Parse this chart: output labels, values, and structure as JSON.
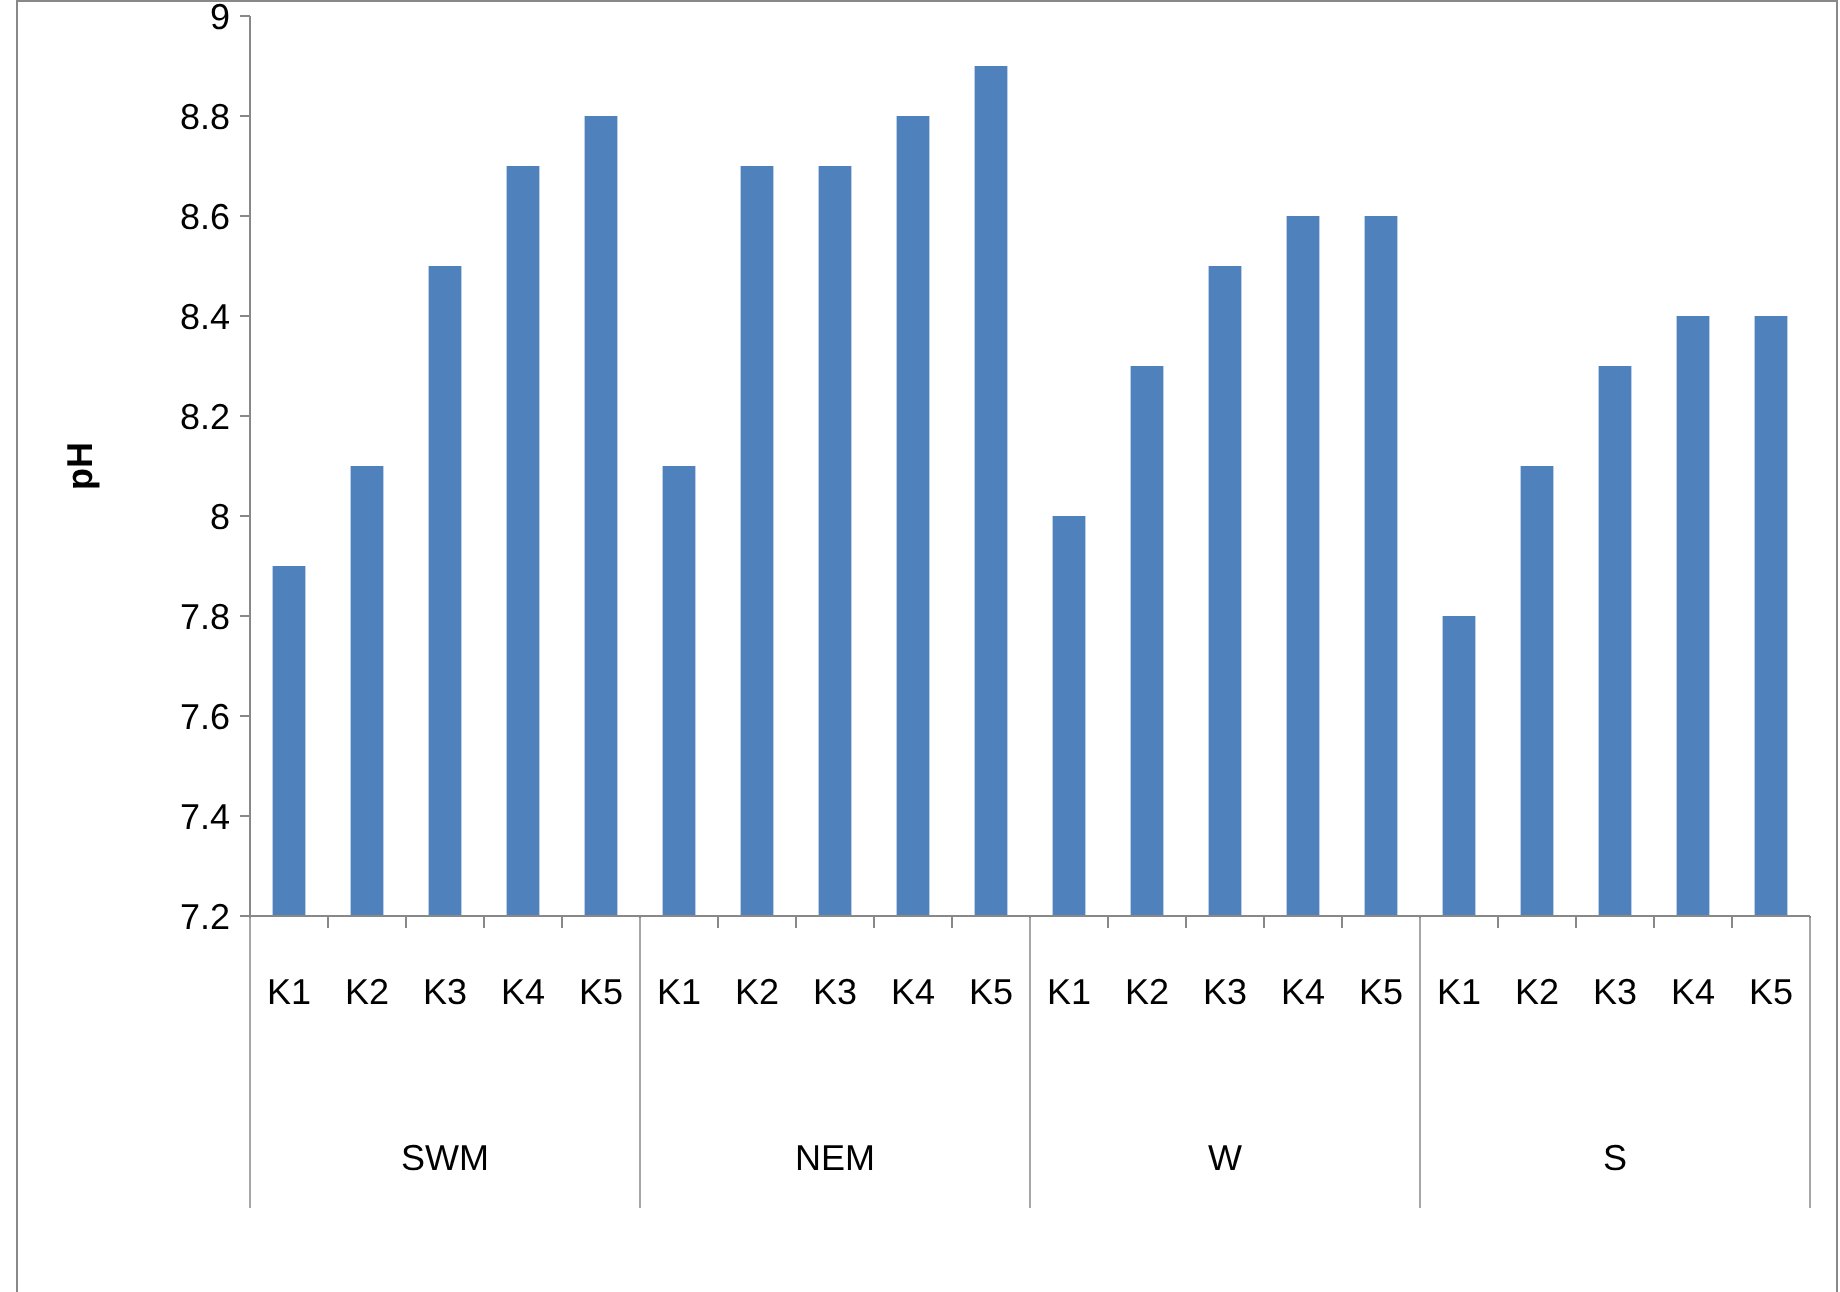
{
  "chart_data": {
    "type": "bar",
    "ylabel": "pH",
    "categories": [
      "K1",
      "K2",
      "K3",
      "K4",
      "K5",
      "K1",
      "K2",
      "K3",
      "K4",
      "K5",
      "K1",
      "K2",
      "K3",
      "K4",
      "K5",
      "K1",
      "K2",
      "K3",
      "K4",
      "K5"
    ],
    "values": [
      7.9,
      8.1,
      8.5,
      8.7,
      8.8,
      8.1,
      8.7,
      8.7,
      8.8,
      8.9,
      8.0,
      8.3,
      8.5,
      8.6,
      8.6,
      7.8,
      8.1,
      8.3,
      8.4,
      8.4
    ],
    "color": "#4f81bd",
    "annotations": [
      "SWM",
      "NEM",
      "W",
      "S"
    ],
    "ylim": [
      7.2,
      9
    ],
    "yticks": [
      7.2,
      7.4,
      7.6,
      7.8,
      8,
      8.2,
      8.4,
      8.6,
      8.8,
      9
    ],
    "grid": false
  }
}
